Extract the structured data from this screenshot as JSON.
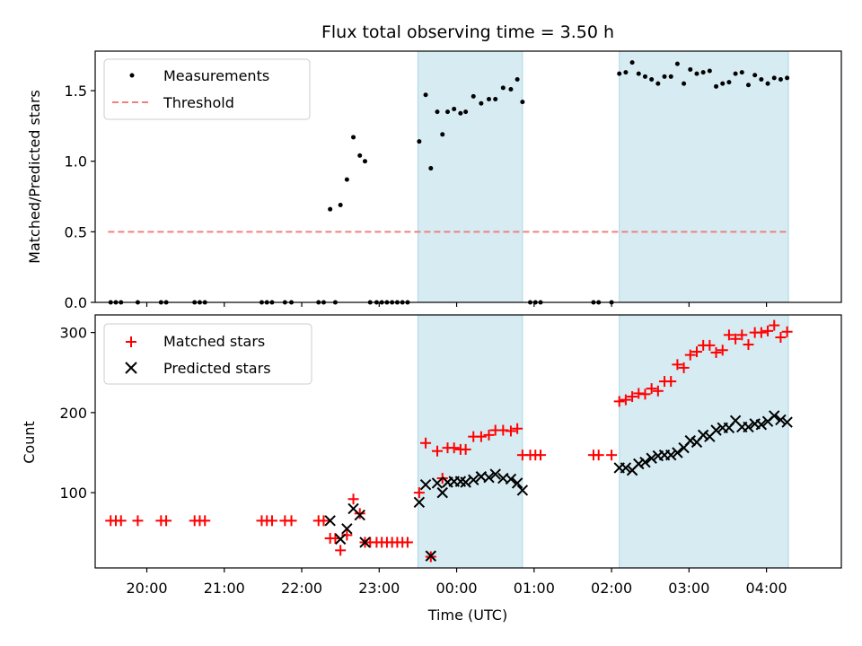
{
  "chart_data": [
    {
      "type": "scatter",
      "title": "Flux total observing time = 3.50 h",
      "xlabel": "",
      "ylabel": "Matched/Predicted stars",
      "xlim": [
        "19:20",
        "04:58"
      ],
      "ylim": [
        0,
        1.78
      ],
      "yticks": [
        "0.0",
        "0.5",
        "1.0",
        "1.5"
      ],
      "grid": false,
      "legend": {
        "placement": "top-left",
        "entries": [
          "Measurements",
          "Threshold"
        ]
      },
      "shaded_intervals": [
        [
          "23:30",
          "00:51"
        ],
        [
          "02:06",
          "04:17"
        ]
      ],
      "threshold": {
        "name": "Threshold",
        "value": 0.5,
        "from": "19:30",
        "to": "04:17",
        "color": "#f08080"
      },
      "series": [
        {
          "name": "Measurements",
          "color": "#000000",
          "points": [
            [
              "19:32",
              0
            ],
            [
              "19:36",
              0
            ],
            [
              "19:40",
              0
            ],
            [
              "19:53",
              0
            ],
            [
              "20:11",
              0
            ],
            [
              "20:15",
              0
            ],
            [
              "20:37",
              0
            ],
            [
              "20:41",
              0
            ],
            [
              "20:45",
              0
            ],
            [
              "21:29",
              0
            ],
            [
              "21:33",
              0
            ],
            [
              "21:37",
              0
            ],
            [
              "21:47",
              0
            ],
            [
              "21:52",
              0
            ],
            [
              "22:13",
              0
            ],
            [
              "22:17",
              0
            ],
            [
              "22:26",
              0
            ],
            [
              "22:22",
              0.66
            ],
            [
              "22:30",
              0.69
            ],
            [
              "22:35",
              0.87
            ],
            [
              "22:40",
              1.17
            ],
            [
              "22:45",
              1.04
            ],
            [
              "22:49",
              1.0
            ],
            [
              "22:53",
              0
            ],
            [
              "22:58",
              0
            ],
            [
              "23:02",
              0
            ],
            [
              "23:06",
              0
            ],
            [
              "23:10",
              0
            ],
            [
              "23:14",
              0
            ],
            [
              "23:18",
              0
            ],
            [
              "23:22",
              0
            ],
            [
              "23:31",
              1.14
            ],
            [
              "23:36",
              1.47
            ],
            [
              "23:40",
              0.95
            ],
            [
              "23:45",
              1.35
            ],
            [
              "23:49",
              1.19
            ],
            [
              "23:53",
              1.35
            ],
            [
              "23:58",
              1.37
            ],
            [
              "00:03",
              1.34
            ],
            [
              "00:07",
              1.35
            ],
            [
              "00:13",
              1.46
            ],
            [
              "00:19",
              1.41
            ],
            [
              "00:25",
              1.44
            ],
            [
              "00:30",
              1.44
            ],
            [
              "00:36",
              1.52
            ],
            [
              "00:42",
              1.51
            ],
            [
              "00:47",
              1.58
            ],
            [
              "00:51",
              1.42
            ],
            [
              "00:57",
              0
            ],
            [
              "01:01",
              0
            ],
            [
              "01:05",
              0
            ],
            [
              "01:46",
              0
            ],
            [
              "01:50",
              0
            ],
            [
              "02:00",
              0
            ],
            [
              "02:06",
              1.62
            ],
            [
              "02:11",
              1.63
            ],
            [
              "02:16",
              1.7
            ],
            [
              "02:21",
              1.62
            ],
            [
              "02:26",
              1.6
            ],
            [
              "02:31",
              1.58
            ],
            [
              "02:36",
              1.55
            ],
            [
              "02:41",
              1.6
            ],
            [
              "02:46",
              1.6
            ],
            [
              "02:51",
              1.69
            ],
            [
              "02:56",
              1.55
            ],
            [
              "03:01",
              1.65
            ],
            [
              "03:06",
              1.62
            ],
            [
              "03:11",
              1.63
            ],
            [
              "03:16",
              1.64
            ],
            [
              "03:21",
              1.53
            ],
            [
              "03:26",
              1.55
            ],
            [
              "03:31",
              1.56
            ],
            [
              "03:36",
              1.62
            ],
            [
              "03:41",
              1.63
            ],
            [
              "03:46",
              1.54
            ],
            [
              "03:51",
              1.61
            ],
            [
              "03:56",
              1.58
            ],
            [
              "04:01",
              1.55
            ],
            [
              "04:06",
              1.59
            ],
            [
              "04:11",
              1.58
            ],
            [
              "04:16",
              1.59
            ]
          ]
        }
      ]
    },
    {
      "type": "scatter",
      "title": "",
      "xlabel": "Time (UTC)",
      "ylabel": "Count",
      "xlim": [
        "19:20",
        "04:58"
      ],
      "ylim": [
        6,
        322
      ],
      "yticks": [
        "100",
        "200",
        "300"
      ],
      "xticks": [
        "20:00",
        "21:00",
        "22:00",
        "23:00",
        "00:00",
        "01:00",
        "02:00",
        "03:00",
        "04:00"
      ],
      "grid": false,
      "legend": {
        "placement": "top-left",
        "entries": [
          "Matched stars",
          "Predicted stars"
        ]
      },
      "shaded_intervals": [
        [
          "23:30",
          "00:51"
        ],
        [
          "02:06",
          "04:17"
        ]
      ],
      "series": [
        {
          "name": "Matched stars",
          "marker": "+",
          "color": "#ff0000",
          "points": [
            [
              "19:32",
              65
            ],
            [
              "19:36",
              65
            ],
            [
              "19:40",
              65
            ],
            [
              "19:53",
              65
            ],
            [
              "20:11",
              65
            ],
            [
              "20:15",
              65
            ],
            [
              "20:37",
              65
            ],
            [
              "20:41",
              65
            ],
            [
              "20:45",
              65
            ],
            [
              "21:29",
              65
            ],
            [
              "21:33",
              65
            ],
            [
              "21:37",
              65
            ],
            [
              "21:47",
              65
            ],
            [
              "21:52",
              65
            ],
            [
              "22:13",
              65
            ],
            [
              "22:17",
              65
            ],
            [
              "22:22",
              43
            ],
            [
              "22:26",
              43
            ],
            [
              "22:30",
              28
            ],
            [
              "22:35",
              47
            ],
            [
              "22:40",
              92
            ],
            [
              "22:45",
              74
            ],
            [
              "22:49",
              38
            ],
            [
              "22:53",
              38
            ],
            [
              "22:58",
              38
            ],
            [
              "23:02",
              38
            ],
            [
              "23:06",
              38
            ],
            [
              "23:10",
              38
            ],
            [
              "23:14",
              38
            ],
            [
              "23:18",
              38
            ],
            [
              "23:22",
              38
            ],
            [
              "23:31",
              100
            ],
            [
              "23:36",
              162
            ],
            [
              "23:40",
              20
            ],
            [
              "23:45",
              152
            ],
            [
              "23:49",
              118
            ],
            [
              "23:53",
              156
            ],
            [
              "23:58",
              156
            ],
            [
              "00:03",
              154
            ],
            [
              "00:07",
              154
            ],
            [
              "00:13",
              170
            ],
            [
              "00:19",
              170
            ],
            [
              "00:25",
              172
            ],
            [
              "00:30",
              178
            ],
            [
              "00:36",
              178
            ],
            [
              "00:42",
              177
            ],
            [
              "00:47",
              180
            ],
            [
              "00:51",
              147
            ],
            [
              "00:57",
              147
            ],
            [
              "01:01",
              147
            ],
            [
              "01:05",
              147
            ],
            [
              "01:46",
              147
            ],
            [
              "01:50",
              147
            ],
            [
              "02:00",
              147
            ],
            [
              "02:06",
              214
            ],
            [
              "02:11",
              216
            ],
            [
              "02:16",
              220
            ],
            [
              "02:21",
              224
            ],
            [
              "02:26",
              223
            ],
            [
              "02:31",
              230
            ],
            [
              "02:36",
              227
            ],
            [
              "02:41",
              239
            ],
            [
              "02:46",
              239
            ],
            [
              "02:51",
              260
            ],
            [
              "02:56",
              256
            ],
            [
              "03:01",
              272
            ],
            [
              "03:06",
              276
            ],
            [
              "03:11",
              284
            ],
            [
              "03:16",
              284
            ],
            [
              "03:21",
              275
            ],
            [
              "03:26",
              278
            ],
            [
              "03:31",
              297
            ],
            [
              "03:36",
              292
            ],
            [
              "03:41",
              297
            ],
            [
              "03:46",
              285
            ],
            [
              "03:51",
              300
            ],
            [
              "03:56",
              300
            ],
            [
              "04:01",
              302
            ],
            [
              "04:06",
              309
            ],
            [
              "04:11",
              294
            ],
            [
              "04:16",
              301
            ]
          ]
        },
        {
          "name": "Predicted stars",
          "marker": "x",
          "color": "#000000",
          "points": [
            [
              "22:22",
              65
            ],
            [
              "22:30",
              42
            ],
            [
              "22:35",
              55
            ],
            [
              "22:40",
              80
            ],
            [
              "22:45",
              72
            ],
            [
              "22:49",
              38
            ],
            [
              "23:31",
              88
            ],
            [
              "23:36",
              110
            ],
            [
              "23:40",
              21
            ],
            [
              "23:45",
              112
            ],
            [
              "23:49",
              100
            ],
            [
              "23:53",
              113
            ],
            [
              "23:58",
              114
            ],
            [
              "00:03",
              114
            ],
            [
              "00:07",
              113
            ],
            [
              "00:13",
              116
            ],
            [
              "00:19",
              120
            ],
            [
              "00:25",
              119
            ],
            [
              "00:30",
              123
            ],
            [
              "00:36",
              118
            ],
            [
              "00:42",
              117
            ],
            [
              "00:47",
              112
            ],
            [
              "00:51",
              103
            ],
            [
              "02:06",
              131
            ],
            [
              "02:11",
              131
            ],
            [
              "02:16",
              128
            ],
            [
              "02:21",
              136
            ],
            [
              "02:26",
              138
            ],
            [
              "02:31",
              143
            ],
            [
              "02:36",
              146
            ],
            [
              "02:41",
              147
            ],
            [
              "02:46",
              147
            ],
            [
              "02:51",
              150
            ],
            [
              "02:56",
              156
            ],
            [
              "03:01",
              165
            ],
            [
              "03:06",
              163
            ],
            [
              "03:11",
              172
            ],
            [
              "03:16",
              170
            ],
            [
              "03:21",
              178
            ],
            [
              "03:26",
              181
            ],
            [
              "03:31",
              181
            ],
            [
              "03:36",
              190
            ],
            [
              "03:41",
              182
            ],
            [
              "03:46",
              182
            ],
            [
              "03:51",
              186
            ],
            [
              "03:56",
              185
            ],
            [
              "04:01",
              189
            ],
            [
              "04:06",
              196
            ],
            [
              "04:11",
              191
            ],
            [
              "04:16",
              188
            ]
          ]
        }
      ]
    }
  ]
}
